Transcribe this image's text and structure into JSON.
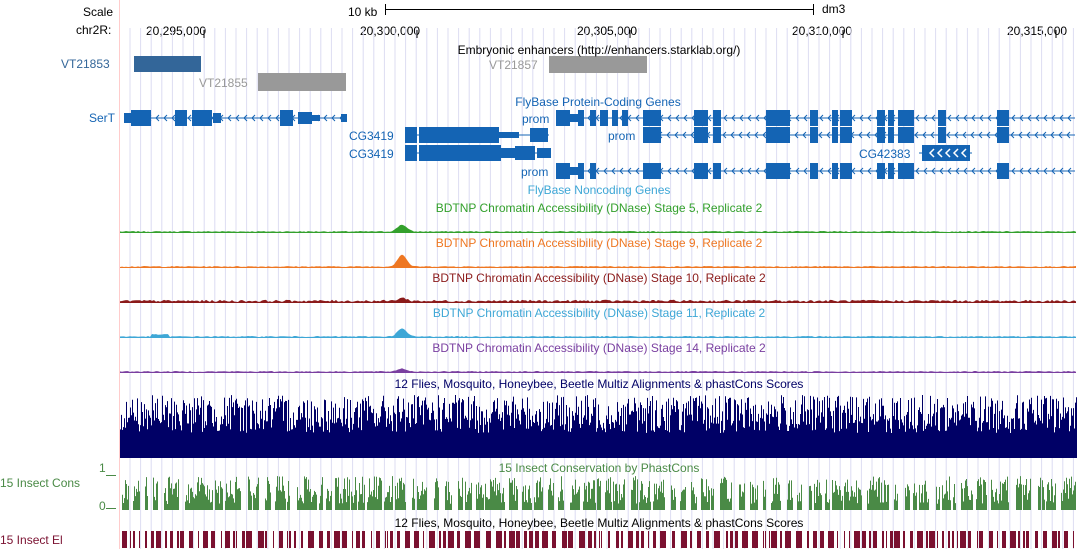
{
  "scale": {
    "label": "Scale",
    "bar_label": "10 kb",
    "assembly": "dm3"
  },
  "chrom": {
    "label": "chr2R:",
    "ticks": [
      {
        "pos": 20295000,
        "label": "20,295,000"
      },
      {
        "pos": 20300000,
        "label": "20,300,000"
      },
      {
        "pos": 20305000,
        "label": "20,305,000"
      },
      {
        "pos": 20310000,
        "label": "20,310,000"
      },
      {
        "pos": 20315000,
        "label": "20,315,000"
      }
    ]
  },
  "tracks": {
    "enhancers": {
      "title": "Embryonic enhancers (http://enhancers.starklab.org/)",
      "left_label": "VT21853",
      "items": [
        {
          "name": "VT21853",
          "color": "#336699"
        },
        {
          "name": "VT21855",
          "color": "#999999"
        },
        {
          "name": "VT21857",
          "color": "#999999"
        }
      ]
    },
    "flybase_coding": {
      "title": "FlyBase Protein-Coding Genes",
      "left_label": "SerT",
      "labels": [
        "prom",
        "prom",
        "prom",
        "CG3419",
        "CG3419",
        "CG42383"
      ]
    },
    "flybase_noncoding": {
      "title": "FlyBase Noncoding Genes"
    },
    "dnase": [
      {
        "title": "BDTNP Chromatin Accessibility (DNase) Stage 5, Replicate 2",
        "color": "#33a02c"
      },
      {
        "title": "BDTNP Chromatin Accessibility (DNase) Stage 9, Replicate 2",
        "color": "#ee7722"
      },
      {
        "title": "BDTNP Chromatin Accessibility (DNase) Stage 10, Replicate 2",
        "color": "#8b1a1a"
      },
      {
        "title": "BDTNP Chromatin Accessibility (DNase) Stage 11, Replicate 2",
        "color": "#3ea7d6"
      },
      {
        "title": "BDTNP Chromatin Accessibility (DNase) Stage 14, Replicate 2",
        "color": "#7a3fa0"
      }
    ],
    "multiz": {
      "title": "12 Flies, Mosquito, Honeybee, Beetle Multiz Alignments & phastCons Scores",
      "color": "#000066"
    },
    "phastcons": {
      "title": "15 Insect Conservation by PhastCons",
      "left_label": "15 Insect Cons",
      "y_max": "1",
      "y_min": "0",
      "color": "#4a8a46"
    },
    "elements": {
      "title": "12 Flies, Mosquito, Honeybee, Beetle Multiz Alignments & phastCons Scores",
      "left_label": "15 Insect El",
      "color": "#7a1030"
    }
  },
  "colors": {
    "gene": "#1464b4",
    "left_line": "#ffcccc",
    "grid": "#d8d8f0"
  }
}
